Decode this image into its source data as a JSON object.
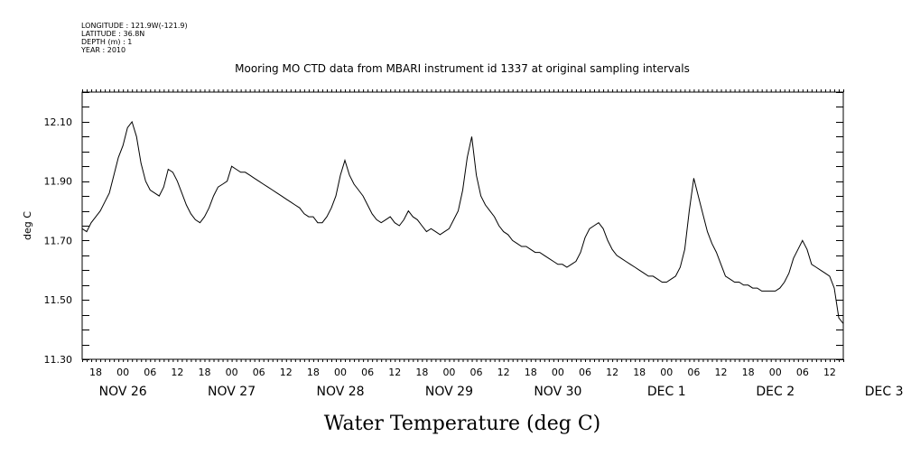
{
  "header": {
    "longitude": "LONGITUDE : 121.9W(-121.9)",
    "latitude": "LATITUDE : 36.8N",
    "depth": "DEPTH (m) : 1",
    "year": "YEAR : 2010"
  },
  "chart_data": {
    "type": "line",
    "title": "Mooring MO CTD data from MBARI instrument id 1337 at original sampling intervals",
    "xlabel": "Water Temperature (deg C)",
    "ylabel": "deg C",
    "ylim": [
      11.3,
      12.2
    ],
    "xlim": [
      -9,
      159
    ],
    "y_tick_labels": [
      "11.30",
      "11.50",
      "11.70",
      "11.90",
      "12.10"
    ],
    "y_tick_values": [
      11.3,
      11.5,
      11.7,
      11.9,
      12.1
    ],
    "x_time_labels": [
      "18",
      "00",
      "06",
      "12",
      "18",
      "00",
      "06",
      "12",
      "18",
      "00",
      "06",
      "12",
      "18",
      "00",
      "06",
      "12",
      "18",
      "00",
      "06",
      "12",
      "18",
      "00",
      "06",
      "12",
      "18",
      "00",
      "06",
      "12"
    ],
    "x_date_labels": [
      "NOV 26",
      "NOV 27",
      "NOV 28",
      "NOV 29",
      "NOV 30",
      "DEC  1",
      "DEC  2",
      "DEC  3"
    ],
    "grid": false,
    "series": [
      {
        "points": [
          [
            -9,
            11.74
          ],
          [
            -8,
            11.73
          ],
          [
            -7,
            11.76
          ],
          [
            -6,
            11.78
          ],
          [
            -5,
            11.8
          ],
          [
            -4,
            11.83
          ],
          [
            -3,
            11.86
          ],
          [
            -2,
            11.92
          ],
          [
            -1,
            11.98
          ],
          [
            0,
            12.02
          ],
          [
            1,
            12.08
          ],
          [
            2,
            12.1
          ],
          [
            3,
            12.05
          ],
          [
            4,
            11.96
          ],
          [
            5,
            11.9
          ],
          [
            6,
            11.87
          ],
          [
            7,
            11.86
          ],
          [
            8,
            11.85
          ],
          [
            9,
            11.88
          ],
          [
            10,
            11.94
          ],
          [
            11,
            11.93
          ],
          [
            12,
            11.9
          ],
          [
            13,
            11.86
          ],
          [
            14,
            11.82
          ],
          [
            15,
            11.79
          ],
          [
            16,
            11.77
          ],
          [
            17,
            11.76
          ],
          [
            18,
            11.78
          ],
          [
            19,
            11.81
          ],
          [
            20,
            11.85
          ],
          [
            21,
            11.88
          ],
          [
            22,
            11.89
          ],
          [
            23,
            11.9
          ],
          [
            24,
            11.95
          ],
          [
            25,
            11.94
          ],
          [
            26,
            11.93
          ],
          [
            27,
            11.93
          ],
          [
            28,
            11.92
          ],
          [
            29,
            11.91
          ],
          [
            30,
            11.9
          ],
          [
            31,
            11.89
          ],
          [
            32,
            11.88
          ],
          [
            33,
            11.87
          ],
          [
            34,
            11.86
          ],
          [
            35,
            11.85
          ],
          [
            36,
            11.84
          ],
          [
            37,
            11.83
          ],
          [
            38,
            11.82
          ],
          [
            39,
            11.81
          ],
          [
            40,
            11.79
          ],
          [
            41,
            11.78
          ],
          [
            42,
            11.78
          ],
          [
            43,
            11.76
          ],
          [
            44,
            11.76
          ],
          [
            45,
            11.78
          ],
          [
            46,
            11.81
          ],
          [
            47,
            11.85
          ],
          [
            48,
            11.92
          ],
          [
            49,
            11.97
          ],
          [
            50,
            11.92
          ],
          [
            51,
            11.89
          ],
          [
            52,
            11.87
          ],
          [
            53,
            11.85
          ],
          [
            54,
            11.82
          ],
          [
            55,
            11.79
          ],
          [
            56,
            11.77
          ],
          [
            57,
            11.76
          ],
          [
            58,
            11.77
          ],
          [
            59,
            11.78
          ],
          [
            60,
            11.76
          ],
          [
            61,
            11.75
          ],
          [
            62,
            11.77
          ],
          [
            63,
            11.8
          ],
          [
            64,
            11.78
          ],
          [
            65,
            11.77
          ],
          [
            66,
            11.75
          ],
          [
            67,
            11.73
          ],
          [
            68,
            11.74
          ],
          [
            69,
            11.73
          ],
          [
            70,
            11.72
          ],
          [
            71,
            11.73
          ],
          [
            72,
            11.74
          ],
          [
            73,
            11.77
          ],
          [
            74,
            11.8
          ],
          [
            75,
            11.87
          ],
          [
            76,
            11.98
          ],
          [
            77,
            12.05
          ],
          [
            78,
            11.92
          ],
          [
            79,
            11.85
          ],
          [
            80,
            11.82
          ],
          [
            81,
            11.8
          ],
          [
            82,
            11.78
          ],
          [
            83,
            11.75
          ],
          [
            84,
            11.73
          ],
          [
            85,
            11.72
          ],
          [
            86,
            11.7
          ],
          [
            87,
            11.69
          ],
          [
            88,
            11.68
          ],
          [
            89,
            11.68
          ],
          [
            90,
            11.67
          ],
          [
            91,
            11.66
          ],
          [
            92,
            11.66
          ],
          [
            93,
            11.65
          ],
          [
            94,
            11.64
          ],
          [
            95,
            11.63
          ],
          [
            96,
            11.62
          ],
          [
            97,
            11.62
          ],
          [
            98,
            11.61
          ],
          [
            99,
            11.62
          ],
          [
            100,
            11.63
          ],
          [
            101,
            11.66
          ],
          [
            102,
            11.71
          ],
          [
            103,
            11.74
          ],
          [
            104,
            11.75
          ],
          [
            105,
            11.76
          ],
          [
            106,
            11.74
          ],
          [
            107,
            11.7
          ],
          [
            108,
            11.67
          ],
          [
            109,
            11.65
          ],
          [
            110,
            11.64
          ],
          [
            111,
            11.63
          ],
          [
            112,
            11.62
          ],
          [
            113,
            11.61
          ],
          [
            114,
            11.6
          ],
          [
            115,
            11.59
          ],
          [
            116,
            11.58
          ],
          [
            117,
            11.58
          ],
          [
            118,
            11.57
          ],
          [
            119,
            11.56
          ],
          [
            120,
            11.56
          ],
          [
            121,
            11.57
          ],
          [
            122,
            11.58
          ],
          [
            123,
            11.61
          ],
          [
            124,
            11.67
          ],
          [
            125,
            11.8
          ],
          [
            126,
            11.91
          ],
          [
            127,
            11.85
          ],
          [
            128,
            11.79
          ],
          [
            129,
            11.73
          ],
          [
            130,
            11.69
          ],
          [
            131,
            11.66
          ],
          [
            132,
            11.62
          ],
          [
            133,
            11.58
          ],
          [
            134,
            11.57
          ],
          [
            135,
            11.56
          ],
          [
            136,
            11.56
          ],
          [
            137,
            11.55
          ],
          [
            138,
            11.55
          ],
          [
            139,
            11.54
          ],
          [
            140,
            11.54
          ],
          [
            141,
            11.53
          ],
          [
            142,
            11.53
          ],
          [
            143,
            11.53
          ],
          [
            144,
            11.53
          ],
          [
            145,
            11.54
          ],
          [
            146,
            11.56
          ],
          [
            147,
            11.59
          ],
          [
            148,
            11.64
          ],
          [
            149,
            11.67
          ],
          [
            150,
            11.7
          ],
          [
            151,
            11.67
          ],
          [
            152,
            11.62
          ],
          [
            153,
            11.61
          ],
          [
            154,
            11.6
          ],
          [
            155,
            11.59
          ],
          [
            156,
            11.58
          ],
          [
            157,
            11.54
          ],
          [
            158,
            11.44
          ],
          [
            159,
            11.42
          ]
        ]
      }
    ]
  }
}
